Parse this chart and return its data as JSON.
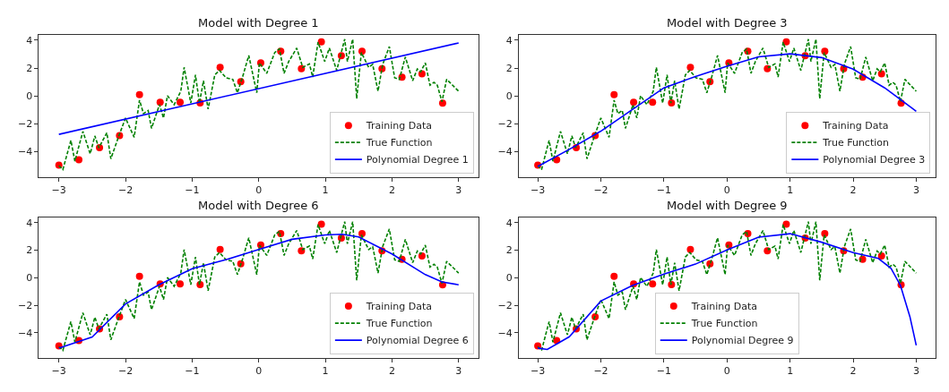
{
  "chart_data": [
    {
      "type": "line",
      "title": "Model with Degree 1",
      "xlim": [
        -3.3,
        3.3
      ],
      "ylim": [
        -5.8,
        4.4
      ],
      "xticks": [
        -3,
        -2,
        -1,
        0,
        1,
        2,
        3
      ],
      "yticks": [
        -4,
        -2,
        0,
        2,
        4
      ],
      "legend": "bottom right",
      "series": [
        {
          "name": "Training Data",
          "type": "scatter",
          "marker": "circle",
          "color": "#ff0000",
          "x": [
            -3,
            -2.7,
            -2.39,
            -2.09,
            -1.79,
            -1.48,
            -1.18,
            -0.88,
            -0.58,
            -0.27,
            0.03,
            0.33,
            0.64,
            0.94,
            1.24,
            1.55,
            1.85,
            2.15,
            2.45,
            2.76
          ],
          "values": [
            -4.95,
            -4.56,
            -3.71,
            -2.84,
            0.1,
            -0.45,
            -0.45,
            -0.49,
            2.05,
            1.02,
            2.37,
            3.2,
            1.96,
            3.88,
            2.88,
            3.2,
            1.96,
            1.34,
            1.58,
            -0.51
          ]
        },
        {
          "name": "True Function",
          "type": "line",
          "line_style": "dashed",
          "color": "#008000",
          "x": [
            -3.0,
            -2.94,
            -2.82,
            -2.76,
            -2.64,
            -2.53,
            -2.46,
            -2.4,
            -2.28,
            -2.22,
            -2.1,
            -2.0,
            -1.87,
            -1.79,
            -1.73,
            -1.66,
            -1.61,
            -1.49,
            -1.43,
            -1.37,
            -1.27,
            -1.17,
            -1.12,
            -1.02,
            -0.95,
            -0.89,
            -0.83,
            -0.76,
            -0.66,
            -0.59,
            -0.49,
            -0.39,
            -0.32,
            -0.24,
            -0.15,
            -0.03,
            0.01,
            0.12,
            0.24,
            0.31,
            0.38,
            0.45,
            0.57,
            0.66,
            0.76,
            0.81,
            0.89,
            0.99,
            1.06,
            1.17,
            1.29,
            1.33,
            1.41,
            1.47,
            1.54,
            1.65,
            1.71,
            1.79,
            1.86,
            1.96,
            2.04,
            2.11,
            2.2,
            2.31,
            2.38,
            2.43,
            2.5,
            2.57,
            2.63,
            2.68,
            2.75,
            2.82,
            2.91,
            3.0
          ],
          "values": [
            -4.99,
            -5.27,
            -3.18,
            -4.67,
            -2.54,
            -4.14,
            -2.86,
            -3.71,
            -2.64,
            -4.5,
            -2.86,
            -1.58,
            -2.96,
            -0.3,
            -1.26,
            -1.04,
            -2.32,
            -0.62,
            -1.58,
            0.02,
            -0.62,
            0.34,
            2.05,
            -0.51,
            1.51,
            -0.51,
            1.09,
            -0.94,
            1.51,
            1.83,
            1.3,
            1.19,
            0.23,
            1.41,
            2.9,
            0.23,
            2.37,
            1.62,
            3.11,
            3.37,
            1.62,
            2.47,
            3.43,
            2.05,
            2.3,
            1.36,
            3.86,
            2.47,
            3.43,
            1.83,
            4.07,
            2.47,
            4.07,
            -0.19,
            3.11,
            2.05,
            2.26,
            0.34,
            2.26,
            3.54,
            1.3,
            1.19,
            2.79,
            1.09,
            1.94,
            1.73,
            2.37,
            0.77,
            0.98,
            0.77,
            -0.41,
            1.19,
            0.77,
            0.34
          ]
        },
        {
          "name": "Polynomial Degree 1",
          "type": "line",
          "line_style": "solid",
          "color": "#0000ff",
          "x": [
            -3,
            3
          ],
          "values": [
            -2.75,
            3.8
          ]
        }
      ]
    },
    {
      "type": "line",
      "title": "Model with Degree 3",
      "xlim": [
        -3.3,
        3.3
      ],
      "ylim": [
        -5.8,
        4.4
      ],
      "xticks": [
        -3,
        -2,
        -1,
        0,
        1,
        2,
        3
      ],
      "yticks": [
        -4,
        -2,
        0,
        2,
        4
      ],
      "legend": "bottom right",
      "series": [
        {
          "name": "Training Data",
          "type": "scatter",
          "marker": "circle",
          "color": "#ff0000",
          "x": [
            -3,
            -2.7,
            -2.39,
            -2.09,
            -1.79,
            -1.48,
            -1.18,
            -0.88,
            -0.58,
            -0.27,
            0.03,
            0.33,
            0.64,
            0.94,
            1.24,
            1.55,
            1.85,
            2.15,
            2.45,
            2.76
          ],
          "values": [
            -4.95,
            -4.56,
            -3.71,
            -2.84,
            0.1,
            -0.45,
            -0.45,
            -0.49,
            2.05,
            1.02,
            2.37,
            3.2,
            1.96,
            3.88,
            2.88,
            3.2,
            1.96,
            1.34,
            1.58,
            -0.51
          ]
        },
        {
          "name": "True Function",
          "type": "line",
          "line_style": "dashed",
          "color": "#008000",
          "x": [
            -3.0,
            -2.94,
            -2.82,
            -2.76,
            -2.64,
            -2.53,
            -2.46,
            -2.4,
            -2.28,
            -2.22,
            -2.1,
            -2.0,
            -1.87,
            -1.79,
            -1.73,
            -1.66,
            -1.61,
            -1.49,
            -1.43,
            -1.37,
            -1.27,
            -1.17,
            -1.12,
            -1.02,
            -0.95,
            -0.89,
            -0.83,
            -0.76,
            -0.66,
            -0.59,
            -0.49,
            -0.39,
            -0.32,
            -0.24,
            -0.15,
            -0.03,
            0.01,
            0.12,
            0.24,
            0.31,
            0.38,
            0.45,
            0.57,
            0.66,
            0.76,
            0.81,
            0.89,
            0.99,
            1.06,
            1.17,
            1.29,
            1.33,
            1.41,
            1.47,
            1.54,
            1.65,
            1.71,
            1.79,
            1.86,
            1.96,
            2.04,
            2.11,
            2.2,
            2.31,
            2.38,
            2.43,
            2.5,
            2.57,
            2.63,
            2.68,
            2.75,
            2.82,
            2.91,
            3.0
          ],
          "values": [
            -4.99,
            -5.27,
            -3.18,
            -4.67,
            -2.54,
            -4.14,
            -2.86,
            -3.71,
            -2.64,
            -4.5,
            -2.86,
            -1.58,
            -2.96,
            -0.3,
            -1.26,
            -1.04,
            -2.32,
            -0.62,
            -1.58,
            0.02,
            -0.62,
            0.34,
            2.05,
            -0.51,
            1.51,
            -0.51,
            1.09,
            -0.94,
            1.51,
            1.83,
            1.3,
            1.19,
            0.23,
            1.41,
            2.9,
            0.23,
            2.37,
            1.62,
            3.11,
            3.37,
            1.62,
            2.47,
            3.43,
            2.05,
            2.3,
            1.36,
            3.86,
            2.47,
            3.43,
            1.83,
            4.07,
            2.47,
            4.07,
            -0.19,
            3.11,
            2.05,
            2.26,
            0.34,
            2.26,
            3.54,
            1.3,
            1.19,
            2.79,
            1.09,
            1.94,
            1.73,
            2.37,
            0.77,
            0.98,
            0.77,
            -0.41,
            1.19,
            0.77,
            0.34
          ]
        },
        {
          "name": "Polynomial Degree 3",
          "type": "line",
          "line_style": "solid",
          "color": "#0000ff",
          "x": [
            -3,
            -2.5,
            -2,
            -1.5,
            -1,
            -0.5,
            0,
            0.5,
            1,
            1.5,
            2,
            2.5,
            3
          ],
          "values": [
            -5.05,
            -3.82,
            -2.52,
            -0.97,
            0.58,
            1.4,
            2.13,
            2.8,
            3.02,
            2.75,
            1.92,
            0.58,
            -1.1
          ]
        }
      ]
    },
    {
      "type": "line",
      "title": "Model with Degree 6",
      "xlim": [
        -3.3,
        3.3
      ],
      "ylim": [
        -5.8,
        4.4
      ],
      "xticks": [
        -3,
        -2,
        -1,
        0,
        1,
        2,
        3
      ],
      "yticks": [
        -4,
        -2,
        0,
        2,
        4
      ],
      "legend": "bottom right",
      "series": [
        {
          "name": "Training Data",
          "type": "scatter",
          "marker": "circle",
          "color": "#ff0000",
          "x": [
            -3,
            -2.7,
            -2.39,
            -2.09,
            -1.79,
            -1.48,
            -1.18,
            -0.88,
            -0.58,
            -0.27,
            0.03,
            0.33,
            0.64,
            0.94,
            1.24,
            1.55,
            1.85,
            2.15,
            2.45,
            2.76
          ],
          "values": [
            -4.95,
            -4.56,
            -3.71,
            -2.84,
            0.1,
            -0.45,
            -0.45,
            -0.49,
            2.05,
            1.02,
            2.37,
            3.2,
            1.96,
            3.88,
            2.88,
            3.2,
            1.96,
            1.34,
            1.58,
            -0.51
          ]
        },
        {
          "name": "True Function",
          "type": "line",
          "line_style": "dashed",
          "color": "#008000",
          "x": [
            -3.0,
            -2.94,
            -2.82,
            -2.76,
            -2.64,
            -2.53,
            -2.46,
            -2.4,
            -2.28,
            -2.22,
            -2.1,
            -2.0,
            -1.87,
            -1.79,
            -1.73,
            -1.66,
            -1.61,
            -1.49,
            -1.43,
            -1.37,
            -1.27,
            -1.17,
            -1.12,
            -1.02,
            -0.95,
            -0.89,
            -0.83,
            -0.76,
            -0.66,
            -0.59,
            -0.49,
            -0.39,
            -0.32,
            -0.24,
            -0.15,
            -0.03,
            0.01,
            0.12,
            0.24,
            0.31,
            0.38,
            0.45,
            0.57,
            0.66,
            0.76,
            0.81,
            0.89,
            0.99,
            1.06,
            1.17,
            1.29,
            1.33,
            1.41,
            1.47,
            1.54,
            1.65,
            1.71,
            1.79,
            1.86,
            1.96,
            2.04,
            2.11,
            2.2,
            2.31,
            2.38,
            2.43,
            2.5,
            2.57,
            2.63,
            2.68,
            2.75,
            2.82,
            2.91,
            3.0
          ],
          "values": [
            -4.99,
            -5.27,
            -3.18,
            -4.67,
            -2.54,
            -4.14,
            -2.86,
            -3.71,
            -2.64,
            -4.5,
            -2.86,
            -1.58,
            -2.96,
            -0.3,
            -1.26,
            -1.04,
            -2.32,
            -0.62,
            -1.58,
            0.02,
            -0.62,
            0.34,
            2.05,
            -0.51,
            1.51,
            -0.51,
            1.09,
            -0.94,
            1.51,
            1.83,
            1.3,
            1.19,
            0.23,
            1.41,
            2.9,
            0.23,
            2.37,
            1.62,
            3.11,
            3.37,
            1.62,
            2.47,
            3.43,
            2.05,
            2.3,
            1.36,
            3.86,
            2.47,
            3.43,
            1.83,
            4.07,
            2.47,
            4.07,
            -0.19,
            3.11,
            2.05,
            2.26,
            0.34,
            2.26,
            3.54,
            1.3,
            1.19,
            2.79,
            1.09,
            1.94,
            1.73,
            2.37,
            0.77,
            0.98,
            0.77,
            -0.41,
            1.19,
            0.77,
            0.34
          ]
        },
        {
          "name": "Polynomial Degree 6",
          "type": "line",
          "line_style": "solid",
          "color": "#0000ff",
          "x": [
            -3,
            -2.5,
            -2,
            -1.5,
            -1,
            -0.5,
            0,
            0.5,
            1,
            1.25,
            1.5,
            2,
            2.5,
            2.75,
            3
          ],
          "values": [
            -5.1,
            -4.3,
            -1.9,
            -0.51,
            0.66,
            1.3,
            2.05,
            2.79,
            3.11,
            3.16,
            2.96,
            1.73,
            0.23,
            -0.3,
            -0.51
          ]
        }
      ]
    },
    {
      "type": "line",
      "title": "Model with Degree 9",
      "xlim": [
        -3.3,
        3.3
      ],
      "ylim": [
        -5.8,
        4.4
      ],
      "xticks": [
        -3,
        -2,
        -1,
        0,
        1,
        2,
        3
      ],
      "yticks": [
        -4,
        -2,
        0,
        2,
        4
      ],
      "legend": "bottom",
      "series": [
        {
          "name": "Training Data",
          "type": "scatter",
          "marker": "circle",
          "color": "#ff0000",
          "x": [
            -3,
            -2.7,
            -2.39,
            -2.09,
            -1.79,
            -1.48,
            -1.18,
            -0.88,
            -0.58,
            -0.27,
            0.03,
            0.33,
            0.64,
            0.94,
            1.24,
            1.55,
            1.85,
            2.15,
            2.45,
            2.76
          ],
          "values": [
            -4.95,
            -4.56,
            -3.71,
            -2.84,
            0.1,
            -0.45,
            -0.45,
            -0.49,
            2.05,
            1.02,
            2.37,
            3.2,
            1.96,
            3.88,
            2.88,
            3.2,
            1.96,
            1.34,
            1.58,
            -0.51
          ]
        },
        {
          "name": "True Function",
          "type": "line",
          "line_style": "dashed",
          "color": "#008000",
          "x": [
            -3.0,
            -2.94,
            -2.82,
            -2.76,
            -2.64,
            -2.53,
            -2.46,
            -2.4,
            -2.28,
            -2.22,
            -2.1,
            -2.0,
            -1.87,
            -1.79,
            -1.73,
            -1.66,
            -1.61,
            -1.49,
            -1.43,
            -1.37,
            -1.27,
            -1.17,
            -1.12,
            -1.02,
            -0.95,
            -0.89,
            -0.83,
            -0.76,
            -0.66,
            -0.59,
            -0.49,
            -0.39,
            -0.32,
            -0.24,
            -0.15,
            -0.03,
            0.01,
            0.12,
            0.24,
            0.31,
            0.38,
            0.45,
            0.57,
            0.66,
            0.76,
            0.81,
            0.89,
            0.99,
            1.06,
            1.17,
            1.29,
            1.33,
            1.41,
            1.47,
            1.54,
            1.65,
            1.71,
            1.79,
            1.86,
            1.96,
            2.04,
            2.11,
            2.2,
            2.31,
            2.38,
            2.43,
            2.5,
            2.57,
            2.63,
            2.68,
            2.75,
            2.82,
            2.91,
            3.0
          ],
          "values": [
            -4.99,
            -5.27,
            -3.18,
            -4.67,
            -2.54,
            -4.14,
            -2.86,
            -3.71,
            -2.64,
            -4.5,
            -2.86,
            -1.58,
            -2.96,
            -0.3,
            -1.26,
            -1.04,
            -2.32,
            -0.62,
            -1.58,
            0.02,
            -0.62,
            0.34,
            2.05,
            -0.51,
            1.51,
            -0.51,
            1.09,
            -0.94,
            1.51,
            1.83,
            1.3,
            1.19,
            0.23,
            1.41,
            2.9,
            0.23,
            2.37,
            1.62,
            3.11,
            3.37,
            1.62,
            2.47,
            3.43,
            2.05,
            2.3,
            1.36,
            3.86,
            2.47,
            3.43,
            1.83,
            4.07,
            2.47,
            4.07,
            -0.19,
            3.11,
            2.05,
            2.26,
            0.34,
            2.26,
            3.54,
            1.3,
            1.19,
            2.79,
            1.09,
            1.94,
            1.73,
            2.37,
            0.77,
            0.98,
            0.77,
            -0.41,
            1.19,
            0.77,
            0.34
          ]
        },
        {
          "name": "Polynomial Degree 9",
          "type": "line",
          "line_style": "solid",
          "color": "#0000ff",
          "x": [
            -3,
            -2.85,
            -2.5,
            -2,
            -1.5,
            -1,
            -0.5,
            0,
            0.5,
            1,
            1.5,
            2,
            2.4,
            2.6,
            2.75,
            2.9,
            3
          ],
          "values": [
            -5.1,
            -5.2,
            -4.28,
            -1.69,
            -0.56,
            0.27,
            0.99,
            2.02,
            2.95,
            3.2,
            2.58,
            1.82,
            1.4,
            0.68,
            -0.56,
            -2.83,
            -4.9
          ]
        }
      ]
    }
  ]
}
